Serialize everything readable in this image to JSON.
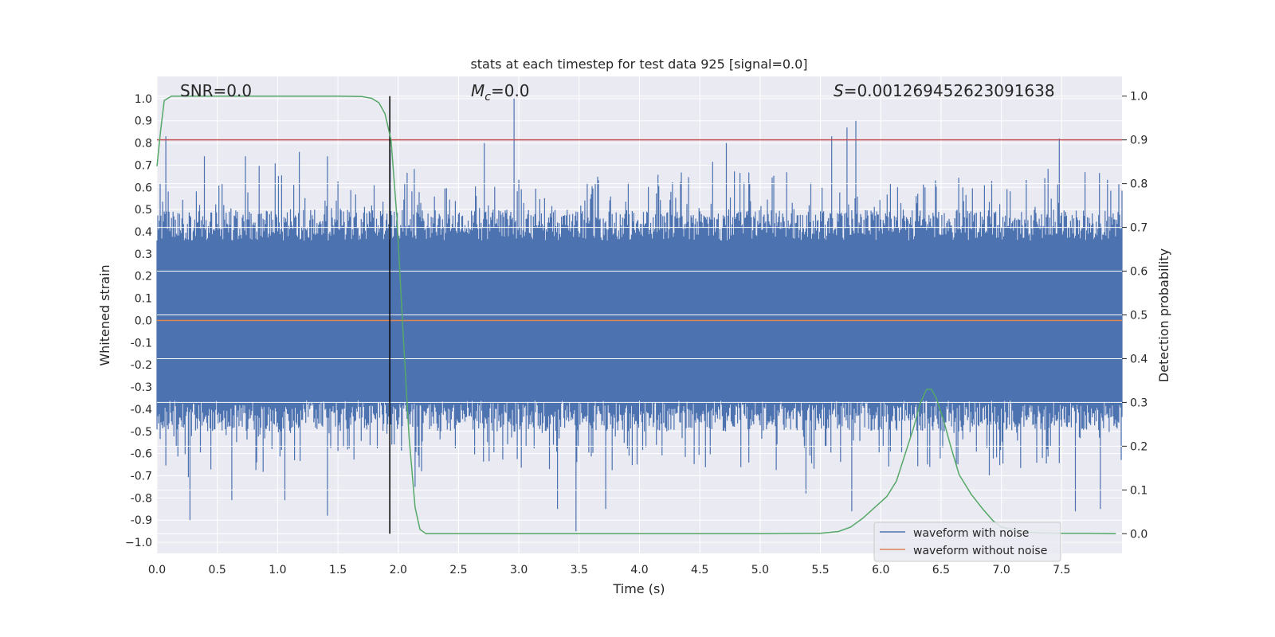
{
  "chart_data": {
    "type": "line",
    "title": "stats at each timestep for test data 925 [signal=0.0]",
    "xlabel": "Time (s)",
    "ylabel_left": "Whitened strain",
    "ylabel_right": "Detection probability",
    "xlim": [
      0.0,
      8.0
    ],
    "ylim_left": [
      -1.05,
      1.1
    ],
    "ylim_right": [
      -0.045,
      1.045
    ],
    "x_ticks": [
      "0.0",
      "0.5",
      "1.0",
      "1.5",
      "2.0",
      "2.5",
      "3.0",
      "3.5",
      "4.0",
      "4.5",
      "5.0",
      "5.5",
      "6.0",
      "6.5",
      "7.0",
      "7.5"
    ],
    "y_ticks_left": [
      "1.0",
      "0.9",
      "0.8",
      "0.7",
      "0.6",
      "0.5",
      "0.4",
      "0.3",
      "0.2",
      "0.1",
      "0.0",
      "-0.1",
      "-0.2",
      "-0.3",
      "-0.4",
      "-0.5",
      "-0.6",
      "-0.7",
      "-0.8",
      "-0.9",
      "−1.0"
    ],
    "y_ticks_right": [
      "1.0",
      "0.9",
      "0.8",
      "0.7",
      "0.6",
      "0.5",
      "0.4",
      "0.3",
      "0.2",
      "0.1",
      "0.0"
    ],
    "grid": true,
    "legend_position": "bottom-right",
    "annotations": {
      "snr": "SNR=0.0",
      "mc_symbol": "M",
      "mc_sub": "c",
      "mc_value": "=0.0",
      "s_symbol": "S",
      "s_value": "=0.001269452623091638"
    },
    "series": [
      {
        "name": "waveform with noise",
        "color": "#4c72b0",
        "description_values": "noise amplitude envelope, dense band about ±0.4 with spikes",
        "spike_peaks": [
          {
            "x": 0.07,
            "y": 0.83
          },
          {
            "x": 0.39,
            "y": 0.74
          },
          {
            "x": 0.73,
            "y": 0.74
          },
          {
            "x": 1.18,
            "y": 0.76
          },
          {
            "x": 1.41,
            "y": 0.74
          },
          {
            "x": 1.93,
            "y": 0.77
          },
          {
            "x": 2.71,
            "y": 0.8
          },
          {
            "x": 2.96,
            "y": 1.0
          },
          {
            "x": 4.72,
            "y": 0.8
          },
          {
            "x": 5.59,
            "y": 0.83
          },
          {
            "x": 5.72,
            "y": 0.87
          },
          {
            "x": 5.79,
            "y": 0.9
          },
          {
            "x": 7.48,
            "y": 0.82
          }
        ],
        "trough_peaks": [
          {
            "x": 0.27,
            "y": -0.9
          },
          {
            "x": 0.62,
            "y": -0.81
          },
          {
            "x": 1.06,
            "y": -0.81
          },
          {
            "x": 1.41,
            "y": -0.88
          },
          {
            "x": 2.14,
            "y": -0.75
          },
          {
            "x": 3.32,
            "y": -0.85
          },
          {
            "x": 3.47,
            "y": -0.95
          },
          {
            "x": 3.72,
            "y": -0.85
          },
          {
            "x": 5.38,
            "y": -0.78
          },
          {
            "x": 5.76,
            "y": -0.86
          },
          {
            "x": 7.61,
            "y": -0.86
          },
          {
            "x": 7.82,
            "y": -0.85
          }
        ]
      },
      {
        "name": "waveform without noise",
        "color": "#dd8452",
        "x": [
          0.0,
          8.0
        ],
        "y": [
          0.0,
          0.0
        ]
      },
      {
        "name": "",
        "axis": "right",
        "color": "#55a868",
        "x": [
          0.0,
          0.03,
          0.06,
          0.12,
          0.2,
          0.5,
          1.0,
          1.5,
          1.7,
          1.78,
          1.84,
          1.89,
          1.94,
          1.99,
          2.04,
          2.09,
          2.14,
          2.18,
          2.23,
          2.3,
          3.0,
          4.0,
          5.0,
          5.5,
          5.65,
          5.75,
          5.85,
          5.95,
          6.05,
          6.13,
          6.2,
          6.27,
          6.33,
          6.38,
          6.42,
          6.46,
          6.52,
          6.58,
          6.65,
          6.75,
          6.85,
          6.93,
          7.0,
          7.15,
          7.3,
          7.5,
          7.7,
          7.95
        ],
        "y": [
          0.84,
          0.92,
          0.99,
          1.0,
          1.0,
          1.0,
          1.0,
          1.0,
          0.999,
          0.995,
          0.985,
          0.96,
          0.9,
          0.72,
          0.46,
          0.22,
          0.06,
          0.01,
          0.0,
          0.0,
          0.0,
          0.0,
          0.0,
          0.001,
          0.005,
          0.015,
          0.035,
          0.06,
          0.085,
          0.12,
          0.18,
          0.24,
          0.3,
          0.33,
          0.33,
          0.31,
          0.26,
          0.2,
          0.135,
          0.09,
          0.055,
          0.03,
          0.015,
          0.006,
          0.002,
          0.001,
          0.001,
          0.0
        ]
      }
    ],
    "threshold_line": {
      "axis": "right",
      "y": 0.9,
      "color": "#c44e52"
    },
    "marker_line": {
      "x": 1.93,
      "y_from": 0.0,
      "y_to": 1.0,
      "axis": "right",
      "color": "#000000"
    }
  },
  "colors": {
    "plot_background": "#eaeaf2",
    "grid": "#ffffff",
    "text": "#262626"
  }
}
